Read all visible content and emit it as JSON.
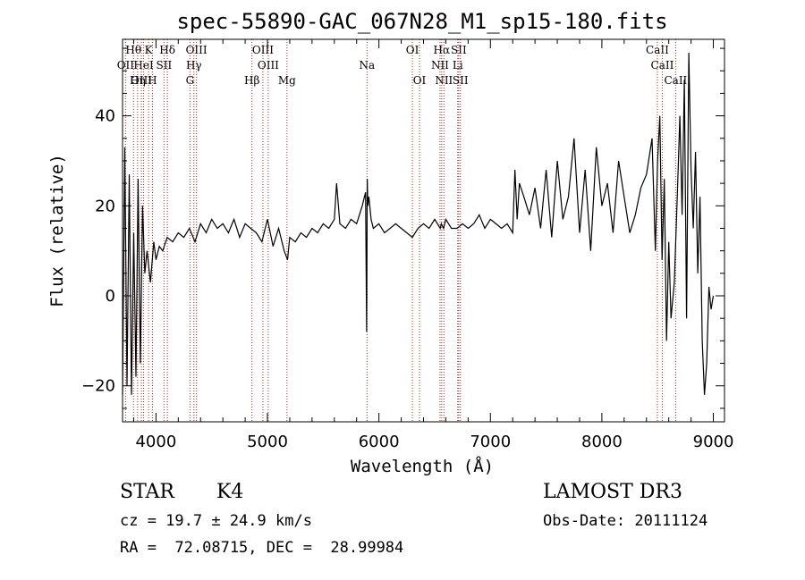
{
  "chart_data": {
    "type": "line",
    "title": "spec-55890-GAC_067N28_M1_sp15-180.fits",
    "xlabel": "Wavelength (Å)",
    "ylabel": "Flux (relative)",
    "xlim": [
      3700,
      9100
    ],
    "ylim": [
      -28,
      57
    ],
    "xticks": [
      4000,
      5000,
      6000,
      7000,
      8000,
      9000
    ],
    "yticks": [
      -20,
      0,
      20,
      40
    ],
    "series": [
      {
        "x": [
          3700,
          3720,
          3740,
          3760,
          3780,
          3800,
          3820,
          3840,
          3860,
          3880,
          3900,
          3920,
          3950,
          3980,
          4000,
          4030,
          4060,
          4100,
          4150,
          4200,
          4250,
          4300,
          4350,
          4400,
          4450,
          4500,
          4550,
          4600,
          4650,
          4700,
          4750,
          4800,
          4850,
          4900,
          4950,
          5000,
          5050,
          5100,
          5150,
          5180,
          5200,
          5250,
          5300,
          5350,
          5400,
          5450,
          5500,
          5550,
          5600,
          5620,
          5650,
          5700,
          5750,
          5800,
          5850,
          5880,
          5890,
          5895,
          5900,
          5910,
          5930,
          5950,
          6000,
          6050,
          6100,
          6150,
          6200,
          6250,
          6300,
          6350,
          6400,
          6450,
          6500,
          6550,
          6560,
          6580,
          6600,
          6650,
          6700,
          6750,
          6800,
          6850,
          6900,
          6950,
          7000,
          7050,
          7100,
          7150,
          7200,
          7220,
          7240,
          7260,
          7300,
          7350,
          7400,
          7450,
          7500,
          7550,
          7600,
          7650,
          7700,
          7750,
          7800,
          7850,
          7900,
          7950,
          8000,
          8050,
          8100,
          8150,
          8200,
          8250,
          8300,
          8350,
          8400,
          8450,
          8480,
          8500,
          8520,
          8540,
          8560,
          8580,
          8600,
          8620,
          8650,
          8680,
          8700,
          8720,
          8740,
          8760,
          8780,
          8800,
          8820,
          8840,
          8860,
          8880,
          8900,
          8920,
          8940,
          8960,
          8980,
          9000
        ],
        "values": [
          -22,
          33,
          -20,
          27,
          -22,
          14,
          -18,
          26,
          -15,
          20,
          5,
          10,
          3,
          12,
          8,
          11,
          10,
          13,
          12,
          14,
          13,
          15,
          12,
          16,
          14,
          17,
          15,
          16,
          14,
          17,
          13,
          16,
          15,
          14,
          12,
          17,
          11,
          15,
          10,
          8,
          13,
          12,
          14,
          13,
          15,
          14,
          16,
          15,
          17,
          25,
          16,
          15,
          17,
          16,
          20,
          23,
          -8,
          26,
          20,
          22,
          17,
          15,
          16,
          14,
          15,
          16,
          15,
          14,
          13,
          15,
          16,
          15,
          17,
          15,
          16,
          15,
          17,
          15,
          15,
          16,
          15,
          16,
          18,
          15,
          17,
          16,
          15,
          16,
          14,
          28,
          17,
          25,
          22,
          18,
          24,
          15,
          28,
          13,
          30,
          17,
          22,
          35,
          14,
          28,
          10,
          33,
          20,
          25,
          14,
          30,
          22,
          14,
          18,
          24,
          27,
          35,
          10,
          30,
          40,
          8,
          26,
          -10,
          12,
          -5,
          3,
          25,
          40,
          18,
          48,
          -5,
          54,
          28,
          15,
          32,
          5,
          22,
          -10,
          -22,
          -15,
          2,
          -3,
          0
        ],
        "name": ""
      }
    ],
    "lines": [
      {
        "name": "Hθ",
        "x": 3798,
        "row": 0
      },
      {
        "name": "K",
        "x": 3934,
        "row": 0
      },
      {
        "name": "Hδ",
        "x": 4102,
        "row": 0
      },
      {
        "name": "OIII",
        "x": 4363,
        "row": 0
      },
      {
        "name": "OIII",
        "x": 4959,
        "row": 0
      },
      {
        "name": "OI",
        "x": 6300,
        "row": 0
      },
      {
        "name": "Hα",
        "x": 6563,
        "row": 0
      },
      {
        "name": "SII",
        "x": 6716,
        "row": 0
      },
      {
        "name": "CaII",
        "x": 8498,
        "row": 0
      },
      {
        "name": "OII",
        "x": 3727,
        "row": 1
      },
      {
        "name": "HeI",
        "x": 3889,
        "row": 1
      },
      {
        "name": "SII",
        "x": 4072,
        "row": 1
      },
      {
        "name": "Hγ",
        "x": 4340,
        "row": 1
      },
      {
        "name": "OIII",
        "x": 5007,
        "row": 1
      },
      {
        "name": "Na",
        "x": 5893,
        "row": 1
      },
      {
        "name": "NII",
        "x": 6548,
        "row": 1
      },
      {
        "name": "Li",
        "x": 6707,
        "row": 1
      },
      {
        "name": "CaII",
        "x": 8542,
        "row": 1
      },
      {
        "name": "OIII",
        "x": 3869,
        "row": 2
      },
      {
        "name": "Hη",
        "x": 3835,
        "row": 2
      },
      {
        "name": "H",
        "x": 3968,
        "row": 2
      },
      {
        "name": "G",
        "x": 4305,
        "row": 2
      },
      {
        "name": "Hβ",
        "x": 4861,
        "row": 2
      },
      {
        "name": "Mg",
        "x": 5175,
        "row": 2
      },
      {
        "name": "OI",
        "x": 6364,
        "row": 2
      },
      {
        "name": "NII",
        "x": 6583,
        "row": 2
      },
      {
        "name": "SII",
        "x": 6731,
        "row": 2
      },
      {
        "name": "CaII",
        "x": 8662,
        "row": 2
      }
    ]
  },
  "info": {
    "object_class": "STAR",
    "subclass": "K4",
    "survey": "LAMOST DR3",
    "cz": "cz = 19.7 ± 24.9 km/s",
    "obs_date": "Obs-Date: 20111124",
    "coords": "RA =  72.08715, DEC =  28.99984"
  },
  "colors": {
    "line_marker": "#b22222",
    "spectrum": "#000000"
  }
}
